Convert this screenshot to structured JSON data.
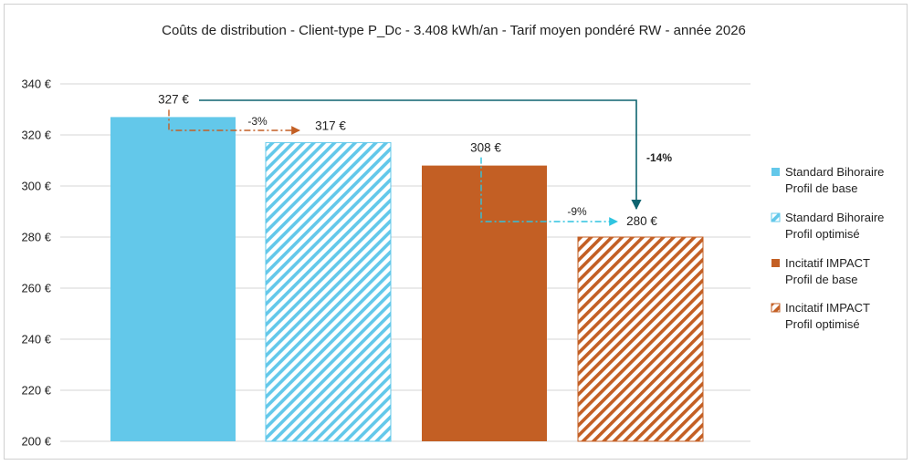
{
  "chart_data": {
    "type": "bar",
    "title": "Coûts de distribution - Client-type P_Dc - 3.408 kWh/an - Tarif moyen pondéré RW - année 2026",
    "xlabel": "",
    "ylabel": "",
    "ylim": [
      200,
      340
    ],
    "yticks": [
      200,
      220,
      240,
      260,
      280,
      300,
      320,
      340
    ],
    "ytick_labels": [
      "200 €",
      "220 €",
      "240 €",
      "260 €",
      "280 €",
      "300 €",
      "320 €",
      "340 €"
    ],
    "categories": [
      "Standard Bihoraire Profil de base",
      "Standard Bihoraire Profil optimisé",
      "Incitatif IMPACT Profil de base",
      "Incitatif IMPACT Profil optimisé"
    ],
    "values": [
      327,
      317,
      308,
      280
    ],
    "value_labels": [
      "327 €",
      "317 €",
      "308 €",
      "280 €"
    ],
    "bar_colors": [
      "#63c8ea",
      "#63c8ea",
      "#c35f24",
      "#c35f24"
    ],
    "bar_patterns": [
      "solid",
      "hatched",
      "solid",
      "hatched"
    ],
    "legend": [
      {
        "line1": "Standard Bihoraire",
        "line2": "Profil de base"
      },
      {
        "line1": "Standard Bihoraire",
        "line2": "Profil optimisé"
      },
      {
        "line1": "Incitatif IMPACT",
        "line2": "Profil de base"
      },
      {
        "line1": "Incitatif IMPACT",
        "line2": "Profil optimisé"
      }
    ],
    "legend_position": "right",
    "annotations": [
      {
        "text": "-3%",
        "from": 0,
        "to": 1,
        "color": "#c35f24",
        "style": "dash-dot"
      },
      {
        "text": "-9%",
        "from": 2,
        "to": 3,
        "color": "#2fc4e0",
        "style": "dash-dot"
      },
      {
        "text": "-14%",
        "from": 0,
        "to": 3,
        "color": "#0e6470",
        "style": "solid"
      }
    ],
    "grid": true
  }
}
